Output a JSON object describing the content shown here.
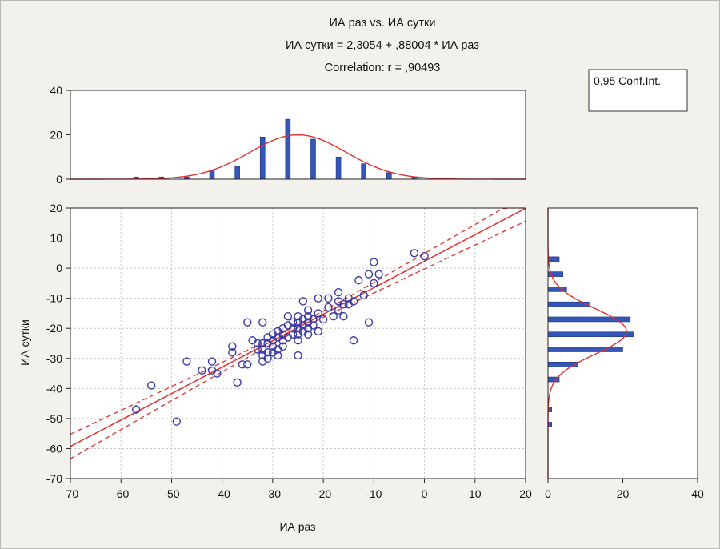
{
  "title_lines": [
    "ИА раз vs. ИА сутки",
    "ИА сутки = 2,3054 + ,88004 * ИА раз",
    "Correlation: r = ,90493"
  ],
  "legend_text": "0,95 Conf.Int.",
  "colors": {
    "points": "#3b3ba6",
    "fit": "#e03030",
    "bars": "#3356b8",
    "background": "#f2f1ec"
  },
  "chart_data": [
    {
      "type": "scatter",
      "xlabel": "ИА раз",
      "ylabel": "ИА сутки",
      "xlim": [
        -70,
        20
      ],
      "ylim": [
        -70,
        20
      ],
      "x_ticks": [
        -70,
        -60,
        -50,
        -40,
        -30,
        -20,
        -10,
        0,
        10,
        20
      ],
      "y_ticks": [
        -70,
        -60,
        -50,
        -40,
        -30,
        -20,
        -10,
        0,
        10,
        20
      ],
      "grid": true,
      "regression": {
        "intercept": 2.3054,
        "slope": 0.88004,
        "r": 0.90493,
        "confidence": 0.95
      },
      "points": [
        [
          -57,
          -47
        ],
        [
          -54,
          -39
        ],
        [
          -49,
          -51
        ],
        [
          -47,
          -31
        ],
        [
          -44,
          -34
        ],
        [
          -42,
          -31
        ],
        [
          -42,
          -34
        ],
        [
          -41,
          -35
        ],
        [
          -38,
          -26
        ],
        [
          -38,
          -28
        ],
        [
          -37,
          -38
        ],
        [
          -36,
          -32
        ],
        [
          -35,
          -32
        ],
        [
          -35,
          -18
        ],
        [
          -34,
          -24
        ],
        [
          -33,
          -25
        ],
        [
          -33,
          -27
        ],
        [
          -32,
          -18
        ],
        [
          -32,
          -25
        ],
        [
          -32,
          -27
        ],
        [
          -32,
          -29
        ],
        [
          -32,
          -31
        ],
        [
          -31,
          -23
        ],
        [
          -31,
          -25
        ],
        [
          -31,
          -28
        ],
        [
          -31,
          -30
        ],
        [
          -30,
          -22
        ],
        [
          -30,
          -24
        ],
        [
          -30,
          -26
        ],
        [
          -30,
          -28
        ],
        [
          -29,
          -21
        ],
        [
          -29,
          -23
        ],
        [
          -29,
          -27
        ],
        [
          -29,
          -29
        ],
        [
          -28,
          -20
        ],
        [
          -28,
          -22
        ],
        [
          -28,
          -24
        ],
        [
          -28,
          -26
        ],
        [
          -27,
          -16
        ],
        [
          -27,
          -19
        ],
        [
          -27,
          -23
        ],
        [
          -26,
          -18
        ],
        [
          -26,
          -20
        ],
        [
          -26,
          -22
        ],
        [
          -25,
          -16
        ],
        [
          -25,
          -18
        ],
        [
          -25,
          -20
        ],
        [
          -25,
          -22
        ],
        [
          -25,
          -24
        ],
        [
          -25,
          -29
        ],
        [
          -24,
          -11
        ],
        [
          -24,
          -17
        ],
        [
          -24,
          -19
        ],
        [
          -24,
          -21
        ],
        [
          -23,
          -14
        ],
        [
          -23,
          -16
        ],
        [
          -23,
          -18
        ],
        [
          -23,
          -20
        ],
        [
          -23,
          -22
        ],
        [
          -22,
          -17
        ],
        [
          -22,
          -19
        ],
        [
          -21,
          -10
        ],
        [
          -21,
          -15
        ],
        [
          -21,
          -21
        ],
        [
          -20,
          -17
        ],
        [
          -19,
          -10
        ],
        [
          -19,
          -13
        ],
        [
          -18,
          -16
        ],
        [
          -17,
          -8
        ],
        [
          -17,
          -11
        ],
        [
          -17,
          -14
        ],
        [
          -16,
          -12
        ],
        [
          -16,
          -16
        ],
        [
          -15,
          -10
        ],
        [
          -15,
          -12
        ],
        [
          -14,
          -11
        ],
        [
          -14,
          -24
        ],
        [
          -13,
          -4
        ],
        [
          -12,
          -9
        ],
        [
          -11,
          -2
        ],
        [
          -11,
          -18
        ],
        [
          -10,
          2
        ],
        [
          -10,
          -5
        ],
        [
          -9,
          -2
        ],
        [
          -2,
          5
        ],
        [
          0,
          4
        ]
      ]
    },
    {
      "type": "bar",
      "orientation": "vertical",
      "note": "histogram of ИА раз with fitted normal curve",
      "xlim": [
        -70,
        20
      ],
      "ylim": [
        0,
        40
      ],
      "y_ticks": [
        0,
        20,
        40
      ],
      "x": [
        -57,
        -52,
        -47,
        -42,
        -37,
        -32,
        -27,
        -22,
        -17,
        -12,
        -7,
        -2
      ],
      "values": [
        1,
        1,
        1,
        4,
        6,
        19,
        27,
        18,
        10,
        7,
        3,
        1
      ],
      "normal_fit": {
        "mean": -25,
        "sd": 9.5,
        "peak": 20
      }
    },
    {
      "type": "bar",
      "orientation": "horizontal",
      "note": "histogram of ИА сутки with fitted normal curve",
      "ylim": [
        -70,
        20
      ],
      "xlim": [
        0,
        40
      ],
      "x_ticks": [
        0,
        20,
        40
      ],
      "y": [
        3,
        -2,
        -7,
        -12,
        -17,
        -22,
        -27,
        -32,
        -37,
        -47,
        -52
      ],
      "values": [
        3,
        4,
        5,
        11,
        22,
        23,
        20,
        8,
        3,
        1,
        1
      ],
      "normal_fit": {
        "mean": -21,
        "sd": 7.5,
        "peak": 21
      }
    }
  ]
}
